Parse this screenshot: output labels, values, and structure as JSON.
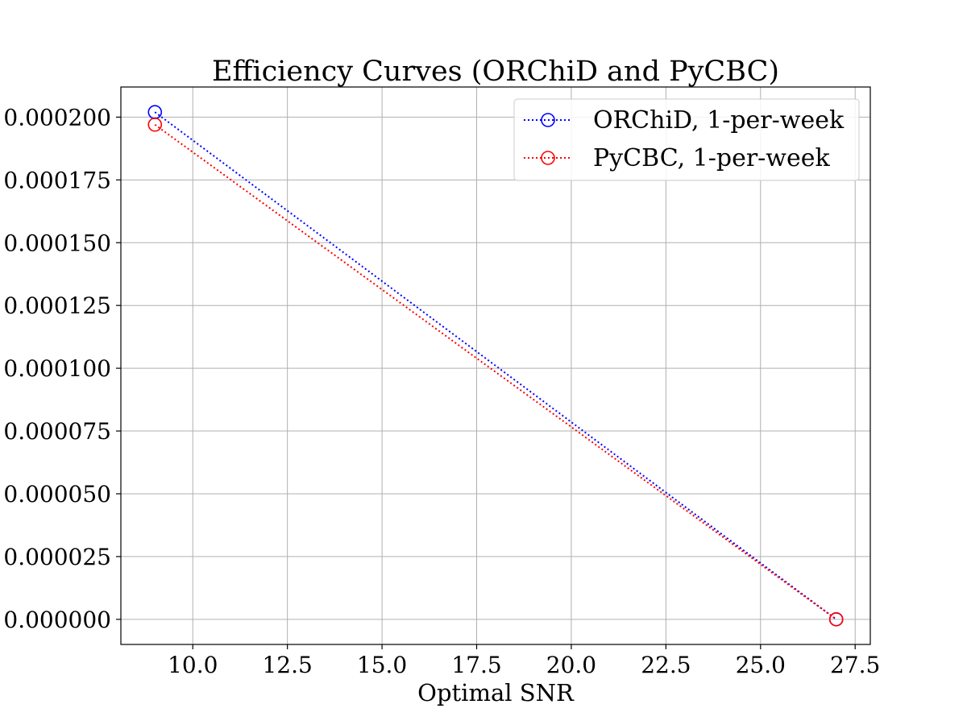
{
  "chart_data": {
    "type": "line",
    "title": "Efficiency Curves (ORChiD and PyCBC)",
    "xlabel": "Optimal SNR",
    "ylabel": "",
    "xlim": [
      8.1,
      27.9
    ],
    "ylim": [
      -1e-05,
      0.000212
    ],
    "x_ticks": [
      "10.0",
      "12.5",
      "15.0",
      "17.5",
      "20.0",
      "22.5",
      "25.0",
      "27.5"
    ],
    "y_ticks": [
      "0.000000",
      "0.000025",
      "0.000050",
      "0.000075",
      "0.000100",
      "0.000125",
      "0.000150",
      "0.000175",
      "0.000200"
    ],
    "grid": true,
    "legend_position": "top-right",
    "series": [
      {
        "name": "ORChiD, 1-per-week",
        "color": "#0000ff",
        "linestyle": "dotted",
        "marker": "open-circle",
        "x": [
          9.0,
          27.0
        ],
        "y": [
          0.000202,
          0.0
        ]
      },
      {
        "name": "PyCBC, 1-per-week",
        "color": "#ff0000",
        "linestyle": "dotted",
        "marker": "open-circle",
        "x": [
          9.0,
          27.0
        ],
        "y": [
          0.000197,
          0.0
        ]
      }
    ]
  }
}
